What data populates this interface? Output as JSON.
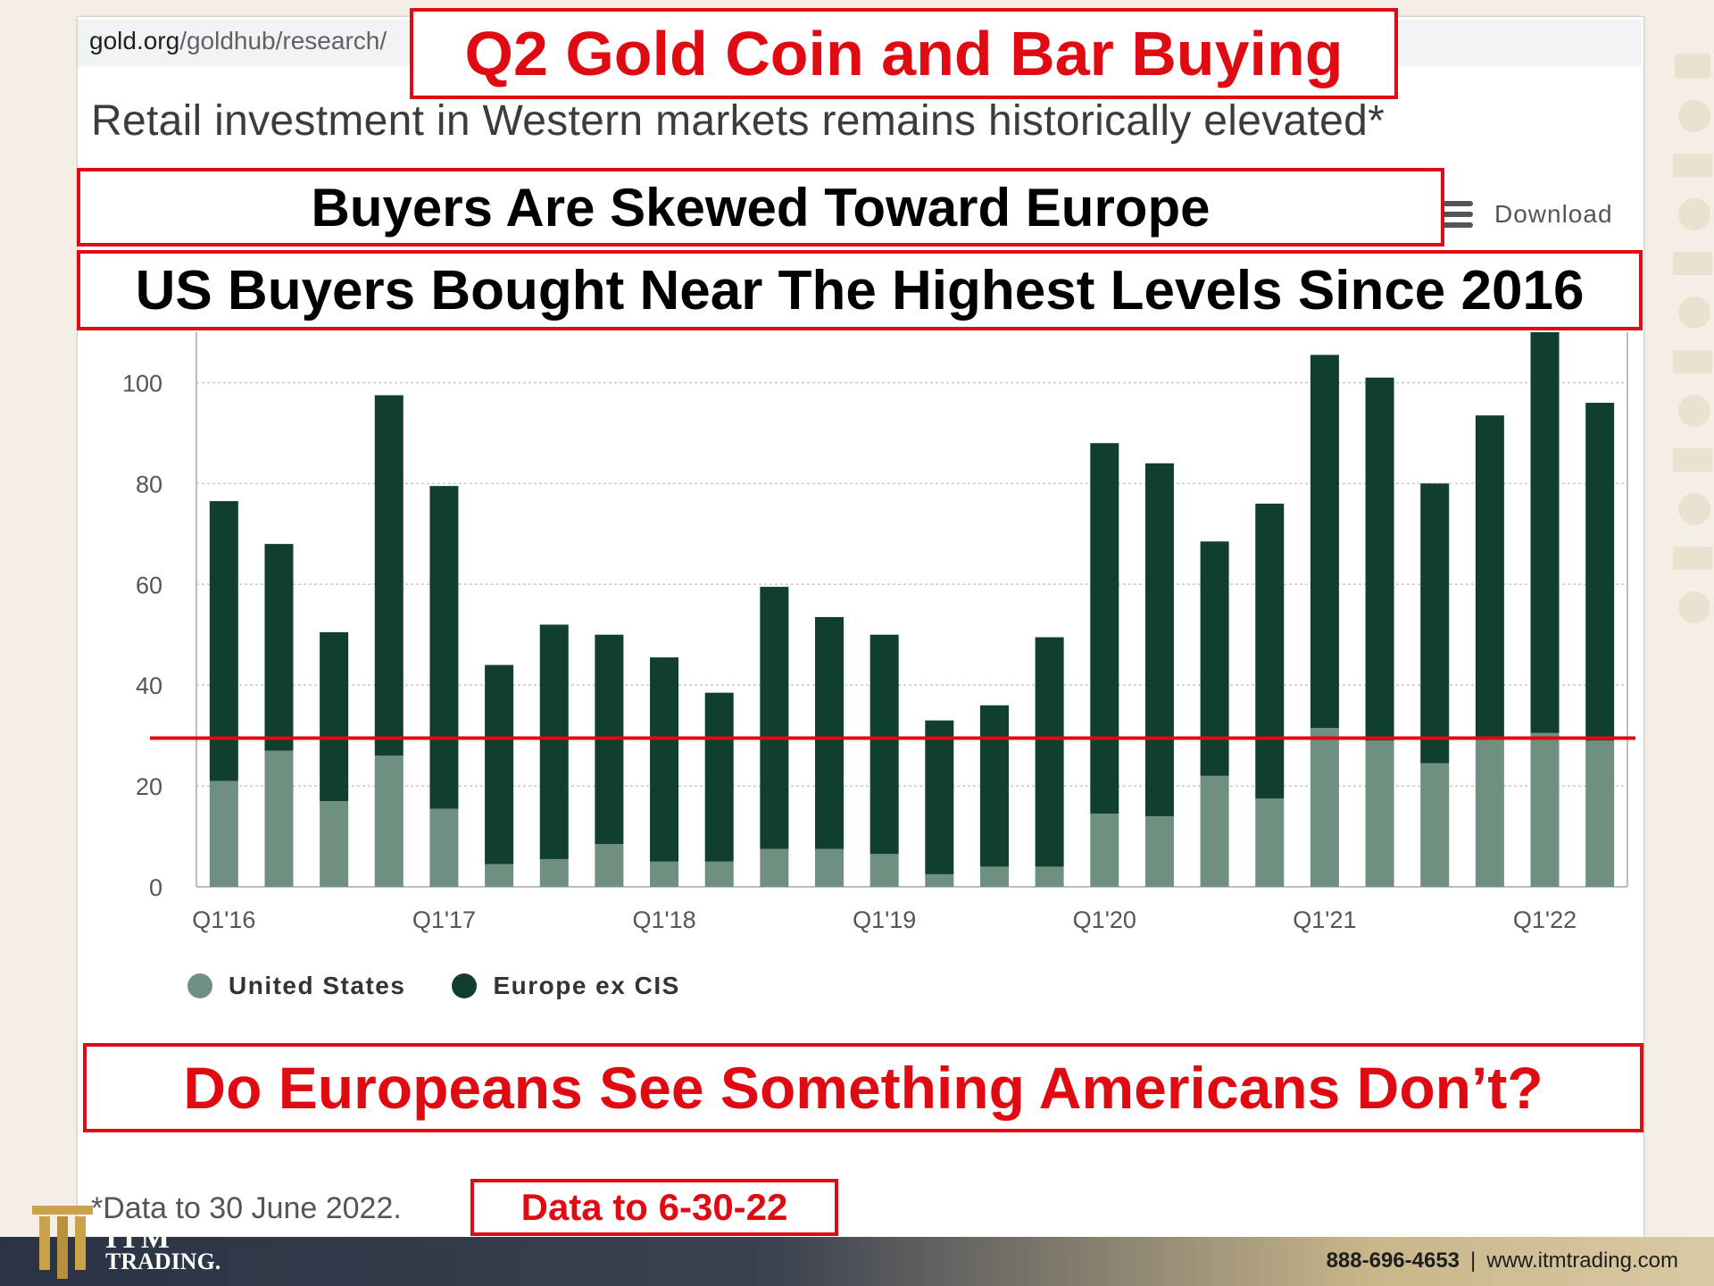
{
  "browser": {
    "url_host": "gold.org",
    "url_path": "/goldhub/research/"
  },
  "title": "Q2 Gold Coin and Bar Buying",
  "subtitle": "Retail investment in Western markets remains historically elevated*",
  "callouts": {
    "europe": "Buyers Are Skewed Toward Europe",
    "us": "US Buyers Bought Near The Highest Levels Since 2016",
    "question": "Do Europeans See Something Americans Don’t?",
    "date": "Data to 6-30-22"
  },
  "download_label": "Download",
  "footnote": "*Data to 30 June 2022.",
  "footer": {
    "brand_top": "ITM",
    "brand_bottom": "TRADING.",
    "phone": "888-696-4653",
    "website": "www.itmtrading.com"
  },
  "colors": {
    "accent_red": "#e00b12",
    "us_series": "#6f8f80",
    "europe_series": "#103f30"
  },
  "chart_data": {
    "type": "bar",
    "stacked": true,
    "categories": [
      "Q1'16",
      "Q2'16",
      "Q3'16",
      "Q4'16",
      "Q1'17",
      "Q2'17",
      "Q3'17",
      "Q4'17",
      "Q1'18",
      "Q2'18",
      "Q3'18",
      "Q4'18",
      "Q1'19",
      "Q2'19",
      "Q3'19",
      "Q4'19",
      "Q1'20",
      "Q2'20",
      "Q3'20",
      "Q4'20",
      "Q1'21",
      "Q2'21",
      "Q3'21",
      "Q4'21",
      "Q1'22",
      "Q2'22"
    ],
    "tick_labels": [
      "Q1'16",
      "Q1'17",
      "Q1'18",
      "Q1'19",
      "Q1'20",
      "Q1'21",
      "Q1'22"
    ],
    "series": [
      {
        "name": "United States",
        "values": [
          21,
          27,
          17,
          26,
          15.5,
          4.5,
          5.5,
          8.5,
          5,
          5,
          7.5,
          7.5,
          6.5,
          2.5,
          4,
          4,
          14.5,
          14,
          22,
          17.5,
          31.5,
          29,
          24.5,
          29.5,
          30.5,
          29
        ]
      },
      {
        "name": "Europe ex CIS",
        "values": [
          55.5,
          41,
          33.5,
          71.5,
          64,
          39.5,
          46.5,
          41.5,
          40.5,
          33.5,
          52,
          46,
          43.5,
          30.5,
          32,
          45.5,
          73.5,
          70,
          46.5,
          58.5,
          74,
          72,
          55.5,
          64,
          79.5,
          67
        ]
      }
    ],
    "ylim": [
      0,
      110
    ],
    "yticks": [
      0,
      20,
      40,
      60,
      80,
      100
    ],
    "reference_line": 29.5,
    "grid": true,
    "legend_position": "bottom-left"
  }
}
